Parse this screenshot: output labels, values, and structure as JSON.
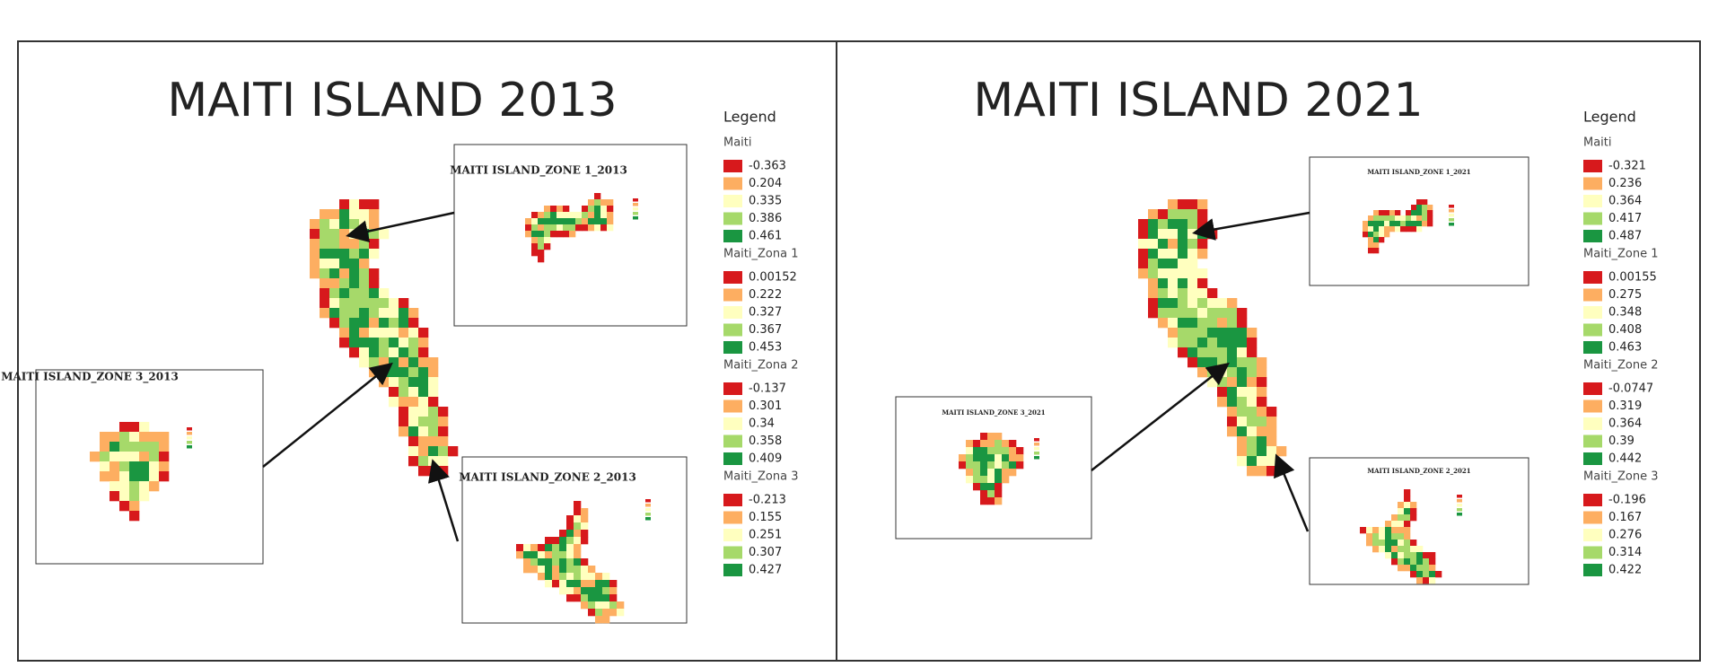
{
  "palette": [
    "#d7191c",
    "#fdae61",
    "#ffffbf",
    "#a6d96a",
    "#1a9641"
  ],
  "panels": [
    {
      "title": "MAITI ISLAND 2013",
      "legend_title": "Legend",
      "legend_groups": [
        {
          "name": "Maiti",
          "items": [
            -0.363,
            0.204,
            0.335,
            0.386,
            0.461
          ]
        },
        {
          "name": "Maiti_Zona 1",
          "items": [
            0.00152,
            0.222,
            0.327,
            0.367,
            0.453
          ]
        },
        {
          "name": "Maiti_Zona 2",
          "items": [
            -0.137,
            0.301,
            0.34,
            0.358,
            0.409
          ]
        },
        {
          "name": "Maiti_Zona 3",
          "items": [
            -0.213,
            0.155,
            0.251,
            0.307,
            0.427
          ]
        }
      ],
      "insets": [
        {
          "title": "MAITI ISLAND_ZONE 1_2013"
        },
        {
          "title": "MAITI ISLAND_ZONE 3_2013"
        },
        {
          "title": "MAITI ISLAND_ZONE 2_2013"
        }
      ]
    },
    {
      "title": "MAITI ISLAND 2021",
      "legend_title": "Legend",
      "legend_groups": [
        {
          "name": "Maiti",
          "items": [
            -0.321,
            0.236,
            0.364,
            0.417,
            0.487
          ]
        },
        {
          "name": "Maiti_Zone 1",
          "items": [
            0.00155,
            0.275,
            0.348,
            0.408,
            0.463
          ]
        },
        {
          "name": "Maiti_Zone 2",
          "items": [
            -0.0747,
            0.319,
            0.364,
            0.39,
            0.442
          ]
        },
        {
          "name": "Maiti_Zone 3",
          "items": [
            -0.196,
            0.167,
            0.276,
            0.314,
            0.422
          ]
        }
      ],
      "insets": [
        {
          "title": "MAITI ISLAND_ZONE 1_2021"
        },
        {
          "title": "MAITI ISLAND_ZONE 3_2021"
        },
        {
          "title": "MAITI ISLAND_ZONE 2_2021"
        }
      ]
    }
  ]
}
